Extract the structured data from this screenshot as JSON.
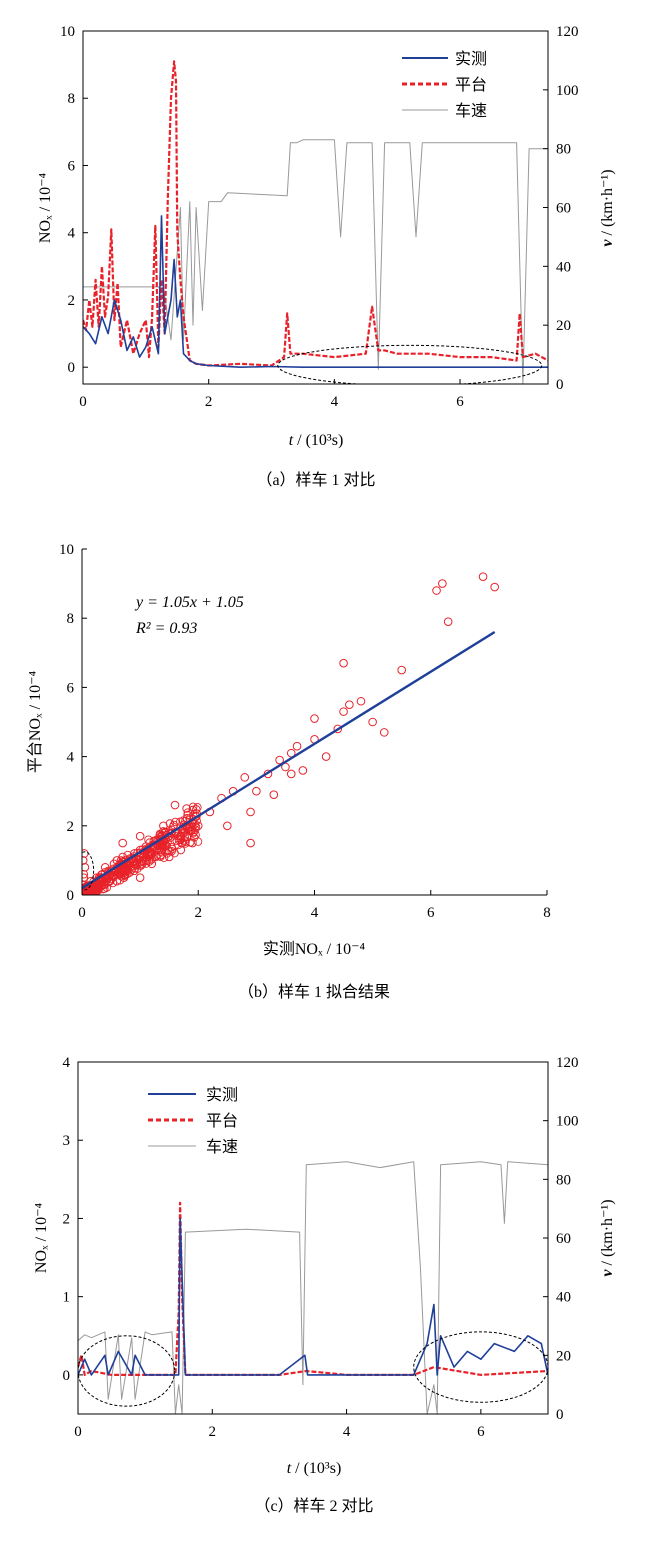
{
  "chart_data": [
    {
      "id": "a",
      "type": "line",
      "caption": "（a）样车 1 对比",
      "xlabel_var": "t",
      "xlabel_unit": " / (10³s)",
      "ylabel_left": "NOₓ / 10⁻⁴",
      "ylabel_right_var": "v",
      "ylabel_right_unit": " / (km·h⁻¹)",
      "xlim": [
        0,
        7.4
      ],
      "ylim_left": [
        -0.5,
        10
      ],
      "ylim_right": [
        0,
        120
      ],
      "xticks": [
        "0",
        "2",
        "4",
        "6"
      ],
      "yticks_left": [
        "0",
        "2",
        "4",
        "6",
        "8",
        "10"
      ],
      "yticks_right": [
        "0",
        "20",
        "40",
        "60",
        "80",
        "100",
        "120"
      ],
      "legend": [
        "实测",
        "平台",
        "车速"
      ],
      "legend_position": "top-right",
      "colors": {
        "measured": "#1f3f99",
        "platform": "#e8222a",
        "speed": "#999999"
      },
      "ellipse": {
        "cx": 5.2,
        "cy": 0.05,
        "rx": 2.1,
        "ry": 0.6
      },
      "series": [
        {
          "name": "实测",
          "axis": "left",
          "x": [
            0,
            0.1,
            0.2,
            0.3,
            0.4,
            0.5,
            0.6,
            0.7,
            0.8,
            0.9,
            1.0,
            1.1,
            1.2,
            1.25,
            1.3,
            1.4,
            1.45,
            1.5,
            1.55,
            1.6,
            1.7,
            1.8,
            2.0,
            2.5,
            3.0,
            3.5,
            4.0,
            5.0,
            6.0,
            7.0,
            7.4
          ],
          "y": [
            1.2,
            1.0,
            0.7,
            1.5,
            1.0,
            2.0,
            1.4,
            0.5,
            0.9,
            0.3,
            0.6,
            1.2,
            0.4,
            4.5,
            1.0,
            2.0,
            3.2,
            1.5,
            2.0,
            0.4,
            0.2,
            0.1,
            0.05,
            0.0,
            0.02,
            0.0,
            0.0,
            0.0,
            0.0,
            0.0,
            0.0
          ]
        },
        {
          "name": "平台",
          "axis": "left",
          "x": [
            0,
            0.05,
            0.1,
            0.15,
            0.2,
            0.25,
            0.3,
            0.35,
            0.4,
            0.45,
            0.5,
            0.55,
            0.6,
            0.7,
            0.8,
            0.9,
            1.0,
            1.05,
            1.1,
            1.15,
            1.2,
            1.25,
            1.3,
            1.35,
            1.4,
            1.45,
            1.48,
            1.5,
            1.55,
            1.6,
            1.7,
            1.8,
            2.0,
            2.5,
            3.0,
            3.2,
            3.25,
            3.3,
            3.5,
            4.0,
            4.5,
            4.6,
            4.7,
            4.8,
            5.0,
            5.5,
            6.0,
            6.5,
            6.9,
            6.95,
            7.0,
            7.2,
            7.4
          ],
          "y": [
            1.4,
            1.1,
            2.0,
            1.2,
            2.6,
            1.2,
            3.0,
            1.5,
            2.1,
            4.1,
            1.4,
            2.5,
            0.6,
            1.4,
            0.4,
            1.0,
            1.4,
            0.3,
            1.5,
            4.2,
            0.6,
            2.6,
            1.0,
            5.0,
            8.0,
            9.1,
            8.5,
            4.0,
            2.6,
            1.5,
            0.2,
            0.1,
            0.05,
            0.1,
            0.05,
            0.3,
            1.6,
            0.4,
            0.4,
            0.3,
            0.4,
            1.8,
            0.5,
            0.5,
            0.4,
            0.4,
            0.3,
            0.3,
            0.2,
            1.6,
            0.3,
            0.4,
            0.2
          ]
        },
        {
          "name": "车速",
          "axis": "right",
          "x": [
            0,
            0.8,
            1.2,
            1.3,
            1.4,
            1.55,
            1.6,
            1.7,
            1.75,
            1.8,
            1.9,
            2.0,
            2.2,
            2.3,
            3.25,
            3.3,
            3.4,
            3.5,
            4.0,
            4.1,
            4.2,
            4.6,
            4.7,
            4.8,
            5.2,
            5.3,
            5.4,
            6.9,
            7.0,
            7.1,
            7.4
          ],
          "y": [
            33,
            33,
            33,
            30,
            15,
            60,
            15,
            62,
            20,
            60,
            25,
            62,
            62,
            65,
            64,
            82,
            82,
            83,
            83,
            50,
            82,
            82,
            5,
            82,
            82,
            50,
            82,
            82,
            0,
            80,
            80
          ]
        }
      ]
    },
    {
      "id": "b",
      "type": "scatter",
      "caption": "（b）样车 1 拟合结果",
      "xlabel": "实测NOₓ / 10⁻⁴",
      "ylabel": "平台NOₓ / 10⁻⁴",
      "xlim": [
        0,
        8
      ],
      "ylim": [
        0,
        10
      ],
      "xticks": [
        "0",
        "2",
        "4",
        "6",
        "8"
      ],
      "yticks": [
        "0",
        "2",
        "4",
        "6",
        "8",
        "10"
      ],
      "fit_line": {
        "slope": 1.05,
        "intercept": 1.05,
        "x_range": [
          0,
          7.1
        ],
        "y_range": [
          0.2,
          7.6
        ]
      },
      "annotation_eq": "y = 1.05x + 1.05",
      "annotation_r2": "R² = 0.93",
      "colors": {
        "points": "#e8222a",
        "fit": "#1f3f99"
      },
      "ellipse": {
        "cx": 0.05,
        "cy": 0.7,
        "rx": 0.15,
        "ry": 0.55
      },
      "points_x": [
        0.02,
        0.03,
        0.02,
        0.04,
        0.05,
        0.03,
        0.1,
        0.15,
        0.2,
        0.25,
        0.3,
        0.35,
        0.4,
        0.5,
        0.55,
        0.6,
        0.7,
        0.8,
        0.9,
        1.0,
        1.1,
        1.2,
        1.3,
        1.4,
        1.5,
        1.6,
        1.7,
        1.8,
        1.9,
        2.0,
        0.6,
        0.9,
        1.2,
        1.5,
        1.7,
        1.9,
        0.7,
        1.0,
        1.4,
        1.8,
        1.6,
        2.2,
        2.4,
        2.6,
        2.8,
        3.0,
        3.2,
        3.4,
        3.6,
        3.8,
        4.0,
        2.5,
        2.9,
        3.3,
        3.5,
        3.7,
        4.2,
        4.4,
        4.5,
        4.6,
        4.8,
        5.0,
        4.0,
        3.6,
        2.9,
        1.7,
        5.2,
        5.5,
        4.5,
        6.1,
        6.3,
        6.2,
        6.9,
        7.1,
        1.0
      ],
      "points_y": [
        0.3,
        0.6,
        1.0,
        1.2,
        0.8,
        0.5,
        0.2,
        0.4,
        0.3,
        0.5,
        0.4,
        0.6,
        0.8,
        0.7,
        0.9,
        1.0,
        1.1,
        0.9,
        1.2,
        1.3,
        1.4,
        1.2,
        1.6,
        1.5,
        1.7,
        1.8,
        1.6,
        2.0,
        2.1,
        2.0,
        0.4,
        0.7,
        0.9,
        1.1,
        1.3,
        1.5,
        1.5,
        1.7,
        2.0,
        2.5,
        2.6,
        2.4,
        2.8,
        3.0,
        3.4,
        3.0,
        3.5,
        3.9,
        4.1,
        3.6,
        4.5,
        2.0,
        1.5,
        2.9,
        3.7,
        4.3,
        4.0,
        4.8,
        5.3,
        5.5,
        5.6,
        5.0,
        5.1,
        3.5,
        2.4,
        1.7,
        4.7,
        6.5,
        6.7,
        8.8,
        7.9,
        9.0,
        9.2,
        8.9,
        0.5
      ]
    },
    {
      "id": "c",
      "type": "line",
      "caption": "（c）样车 2 对比",
      "xlabel_var": "t",
      "xlabel_unit": " / (10³s)",
      "ylabel_left": "NOₓ / 10⁻⁴",
      "ylabel_right_var": "v",
      "ylabel_right_unit": " / (km·h⁻¹)",
      "xlim": [
        0,
        7
      ],
      "ylim_left": [
        -0.5,
        4
      ],
      "ylim_right": [
        0,
        120
      ],
      "xticks": [
        "0",
        "2",
        "4",
        "6"
      ],
      "yticks_left": [
        "0",
        "1",
        "2",
        "3",
        "4"
      ],
      "yticks_right": [
        "0",
        "20",
        "40",
        "60",
        "80",
        "100",
        "120"
      ],
      "legend": [
        "实测",
        "平台",
        "车速"
      ],
      "legend_position": "top-left",
      "colors": {
        "measured": "#1f3f99",
        "platform": "#e8222a",
        "speed": "#999999"
      },
      "ellipses": [
        {
          "cx": 0.72,
          "cy": 0.05,
          "rx": 0.72,
          "ry": 0.45
        },
        {
          "cx": 6.0,
          "cy": 0.1,
          "rx": 1.0,
          "ry": 0.45
        }
      ],
      "series": [
        {
          "name": "实测",
          "axis": "left",
          "x": [
            0,
            0.1,
            0.2,
            0.4,
            0.45,
            0.6,
            0.8,
            0.85,
            1.0,
            1.5,
            1.52,
            1.6,
            2.0,
            3.0,
            3.38,
            3.42,
            4.0,
            5.0,
            5.2,
            5.3,
            5.35,
            5.4,
            5.6,
            5.8,
            6.0,
            6.2,
            6.5,
            6.7,
            6.9,
            7.0
          ],
          "y": [
            0.0,
            0.2,
            0.0,
            0.25,
            0.0,
            0.3,
            0.0,
            0.25,
            0.0,
            0.0,
            2.0,
            0.0,
            0.0,
            0.0,
            0.25,
            0.0,
            0.0,
            0.0,
            0.4,
            0.9,
            0.0,
            0.5,
            0.1,
            0.3,
            0.2,
            0.4,
            0.3,
            0.5,
            0.4,
            0.0
          ]
        },
        {
          "name": "平台",
          "axis": "left",
          "x": [
            0,
            0.05,
            0.1,
            0.2,
            0.5,
            1.0,
            1.45,
            1.5,
            1.52,
            1.55,
            1.6,
            2.0,
            3.0,
            3.4,
            4.0,
            5.0,
            5.3,
            6.0,
            7.0
          ],
          "y": [
            0.1,
            0.25,
            0.0,
            0.05,
            0.0,
            0.0,
            0.0,
            0.8,
            2.2,
            1.0,
            0.0,
            0.0,
            0.0,
            0.05,
            0.0,
            0.0,
            0.1,
            0.0,
            0.05
          ]
        },
        {
          "name": "车速",
          "axis": "right",
          "x": [
            0,
            0.1,
            0.2,
            0.4,
            0.45,
            0.6,
            0.65,
            0.8,
            0.85,
            1.0,
            1.1,
            1.4,
            1.45,
            1.5,
            1.55,
            1.6,
            2.5,
            3.3,
            3.35,
            3.4,
            4.0,
            4.5,
            5.0,
            5.1,
            5.2,
            5.3,
            5.35,
            5.4,
            6.0,
            6.3,
            6.35,
            6.4,
            7.0
          ],
          "y": [
            25,
            27,
            26,
            28,
            5,
            27,
            5,
            26,
            5,
            28,
            27,
            28,
            0,
            10,
            0,
            62,
            63,
            62,
            10,
            85,
            86,
            84,
            86,
            50,
            0,
            10,
            0,
            85,
            86,
            85,
            65,
            86,
            85
          ]
        }
      ]
    }
  ]
}
